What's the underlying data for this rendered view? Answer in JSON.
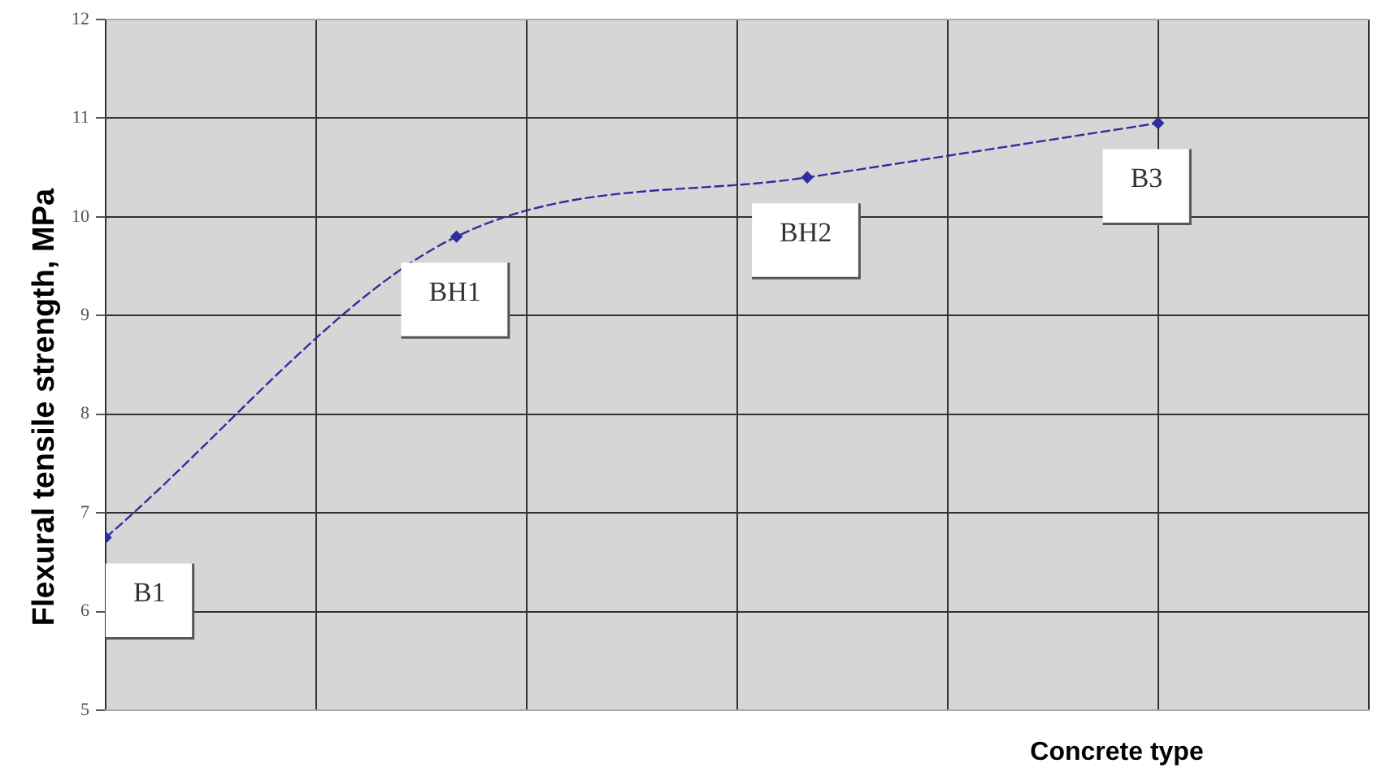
{
  "chart_data": {
    "type": "line",
    "xlabel": "Concrete type",
    "ylabel": "Flexural tensile strength, MPa",
    "categories": [
      null,
      null,
      null,
      null
    ],
    "series": [
      {
        "color": "#2e2e9e",
        "values": [
          6.75,
          9.8,
          10.4,
          10.95
        ]
      }
    ],
    "ylim": [
      5,
      12
    ],
    "yticks": [
      5,
      6,
      7,
      8,
      9,
      10,
      11,
      12
    ],
    "annotations": [
      "B1",
      "BH1",
      "BH2",
      "B3"
    ],
    "grid": true,
    "legend": false,
    "marker": "diamond",
    "line_style": "dashed",
    "tick_labels": "y"
  }
}
